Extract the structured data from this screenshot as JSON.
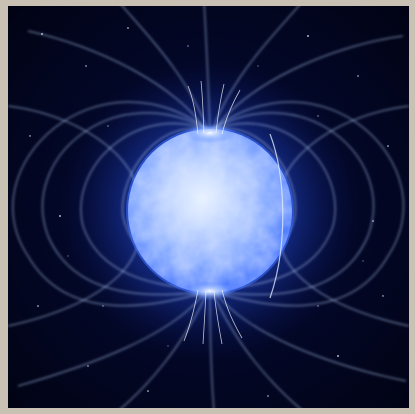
{
  "image": {
    "subject": "magnetar-star-icon",
    "colors": {
      "space_background": "#03082a",
      "space_deep": "#010314",
      "star_core": "#e8f2ff",
      "star_surface": "#8fb4ff",
      "star_edge": "#3a6cff",
      "glow": "#2d5bff",
      "field_lines": "#b9d4ff",
      "frame": "#c9c2b4"
    }
  }
}
